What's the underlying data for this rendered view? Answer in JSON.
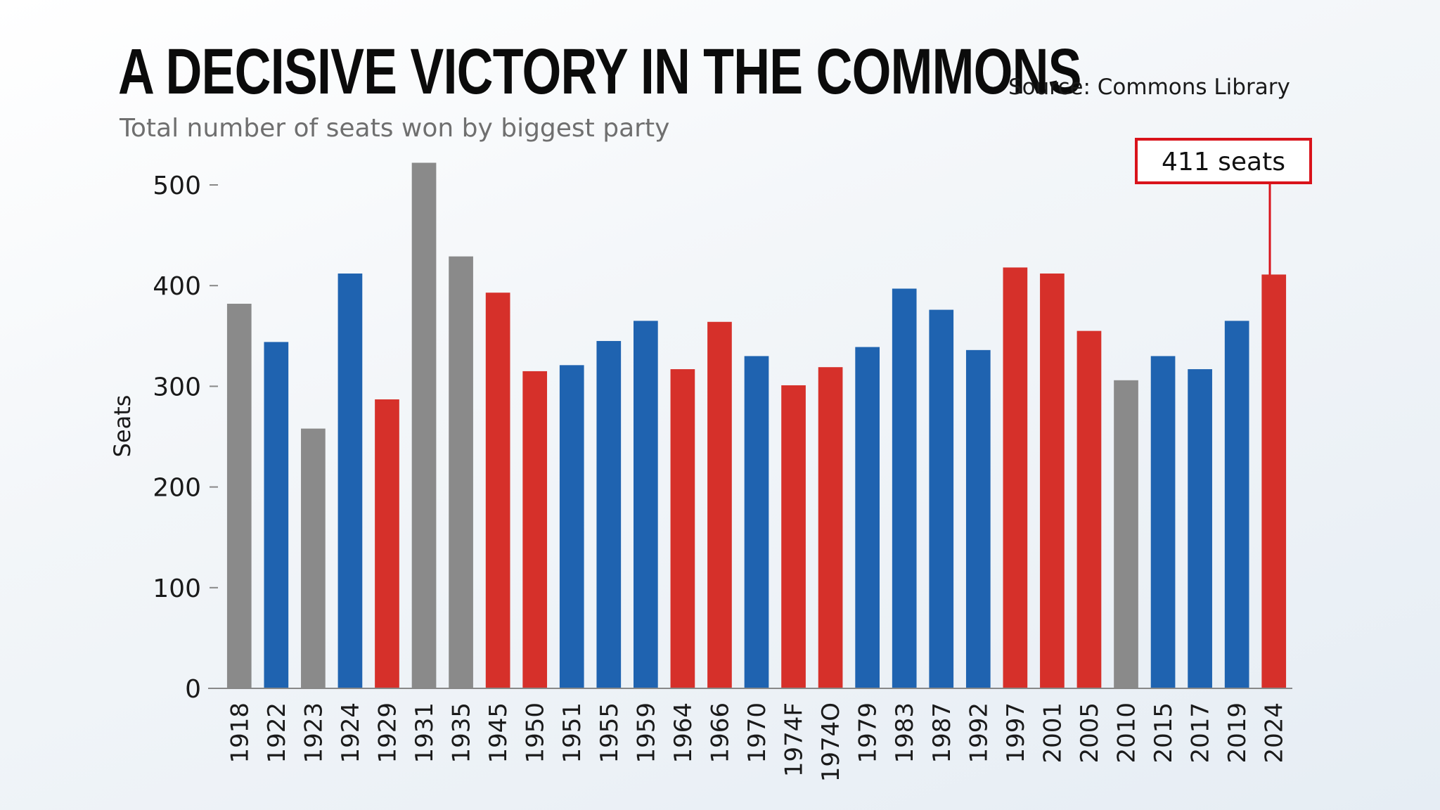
{
  "header": {
    "title": "A DECISIVE VICTORY IN THE COMMONS",
    "source": "Source: Commons Library",
    "subtitle": "Total number of seats won by biggest party"
  },
  "colors": {
    "conservative": "#1f63b0",
    "labour": "#d6302a",
    "coalition": "#8a8a8a",
    "callout": "#d9131b",
    "axis": "#888888"
  },
  "chart_data": {
    "type": "bar",
    "title": "A DECISIVE VICTORY IN THE COMMONS",
    "subtitle": "Total number of seats won by biggest party",
    "ylabel": "Seats",
    "xlabel": "",
    "ylim": [
      0,
      520
    ],
    "yticks": [
      "0",
      "100",
      "200",
      "300",
      "400",
      "500"
    ],
    "grid": false,
    "categories": [
      "1918",
      "1922",
      "1923",
      "1924",
      "1929",
      "1931",
      "1935",
      "1945",
      "1950",
      "1951",
      "1955",
      "1959",
      "1964",
      "1966",
      "1970",
      "1974F",
      "1974O",
      "1979",
      "1983",
      "1987",
      "1992",
      "1997",
      "2001",
      "2005",
      "2010",
      "2015",
      "2017",
      "2019",
      "2024"
    ],
    "values": [
      382,
      344,
      258,
      412,
      287,
      522,
      429,
      393,
      315,
      321,
      345,
      365,
      317,
      364,
      330,
      301,
      319,
      339,
      397,
      376,
      336,
      418,
      412,
      355,
      306,
      330,
      317,
      365,
      411
    ],
    "bar_color_keys": [
      "coalition",
      "conservative",
      "coalition",
      "conservative",
      "labour",
      "coalition",
      "coalition",
      "labour",
      "labour",
      "conservative",
      "conservative",
      "conservative",
      "labour",
      "labour",
      "conservative",
      "labour",
      "labour",
      "conservative",
      "conservative",
      "conservative",
      "conservative",
      "labour",
      "labour",
      "labour",
      "coalition",
      "conservative",
      "conservative",
      "conservative",
      "labour"
    ],
    "annotation": {
      "text": "411 seats",
      "category": "2024"
    }
  }
}
